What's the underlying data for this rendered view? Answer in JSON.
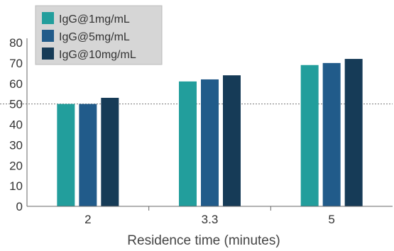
{
  "chart_data": {
    "type": "bar",
    "categories": [
      "2",
      "3.3",
      "5"
    ],
    "series": [
      {
        "name": "IgG@1mg/mL",
        "values": [
          50,
          61,
          69
        ],
        "color": "#229e9c"
      },
      {
        "name": "IgG@5mg/mL",
        "values": [
          50,
          62,
          70
        ],
        "color": "#215b8a"
      },
      {
        "name": "IgG@10mg/mL",
        "values": [
          53,
          64,
          72
        ],
        "color": "#163b57"
      }
    ],
    "xlabel": "Residence time (minutes)",
    "ylabel": "",
    "ylim": [
      0,
      80
    ],
    "yticks": [
      0,
      10,
      20,
      30,
      40,
      50,
      60,
      70,
      80
    ],
    "reference_line": {
      "value": 50,
      "style": "dotted",
      "color": "#777777"
    },
    "legend": {
      "position": "top-left",
      "background": "#d6d6d6"
    },
    "grid": false
  }
}
